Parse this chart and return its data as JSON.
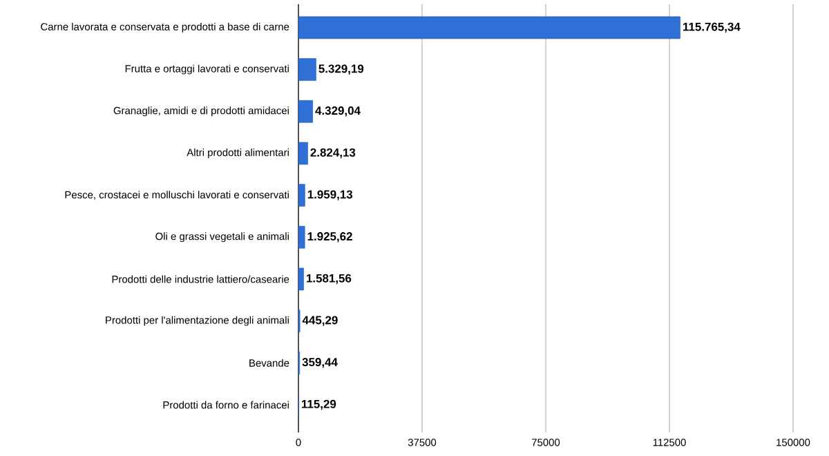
{
  "chart_data": {
    "type": "bar",
    "orientation": "horizontal",
    "categories": [
      "Carne lavorata e conservata e prodotti a base di carne",
      "Frutta e ortaggi lavorati e conservati",
      "Granaglie, amidi e di prodotti amidacei",
      "Altri prodotti alimentari",
      "Pesce, crostacei e molluschi lavorati e conservati",
      "Oli e grassi vegetali e animali",
      "Prodotti delle industrie lattiero/casearie",
      "Prodotti per l'alimentazione degli animali",
      "Bevande",
      "Prodotti da forno e farinacei"
    ],
    "values": [
      115765.34,
      5329.19,
      4329.04,
      2824.13,
      1959.13,
      1925.62,
      1581.56,
      445.29,
      359.44,
      115.29
    ],
    "value_labels": [
      "115.765,34",
      "5.329,19",
      "4.329,04",
      "2.824,13",
      "1.959,13",
      "1.925,62",
      "1.581,56",
      "445,29",
      "359,44",
      "115,29"
    ],
    "color": "#2f6fd6",
    "xlim": [
      0,
      150000
    ],
    "xticks": [
      0,
      37500,
      75000,
      112500,
      150000
    ],
    "grid": "x"
  }
}
